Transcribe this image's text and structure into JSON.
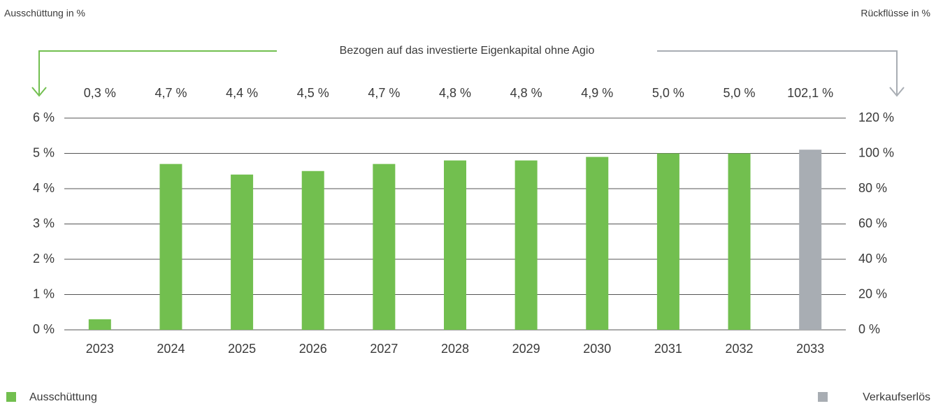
{
  "chart_data": {
    "type": "bar",
    "y_label": "Ausschüttung in %",
    "y2_label": "Rückflüsse in %",
    "annotation": "Bezogen auf das investierte Eigenkapital ohne Agio",
    "categories": [
      "2023",
      "2024",
      "2025",
      "2026",
      "2027",
      "2028",
      "2029",
      "2030",
      "2031",
      "2032",
      "2033"
    ],
    "series": [
      {
        "name": "Ausschüttung",
        "color": "#72bf4f",
        "values": [
          0.3,
          4.7,
          4.4,
          4.5,
          4.7,
          4.8,
          4.8,
          4.9,
          5.0,
          5.0,
          null
        ],
        "value_labels": [
          "0,3 %",
          "4,7 %",
          "4,4 %",
          "4,5 %",
          "4,7 %",
          "4,8 %",
          "4,8 %",
          "4,9 %",
          "5,0 %",
          "5,0 %",
          null
        ]
      },
      {
        "name": "Verkaufserlös",
        "color": "#a8adb3",
        "axis": "y2",
        "values": [
          null,
          null,
          null,
          null,
          null,
          null,
          null,
          null,
          null,
          null,
          102.1
        ],
        "value_labels": [
          null,
          null,
          null,
          null,
          null,
          null,
          null,
          null,
          null,
          null,
          "102,1 %"
        ]
      }
    ],
    "ylim": [
      0,
      6
    ],
    "yticks": [
      {
        "value": 0,
        "label": "0 %"
      },
      {
        "value": 1,
        "label": "1 %"
      },
      {
        "value": 2,
        "label": "2 %"
      },
      {
        "value": 3,
        "label": "3 %"
      },
      {
        "value": 4,
        "label": "4 %"
      },
      {
        "value": 5,
        "label": "5 %"
      },
      {
        "value": 6,
        "label": "6 %"
      }
    ],
    "y2lim": [
      0,
      120
    ],
    "y2ticks": [
      {
        "value": 0,
        "label": "0 %"
      },
      {
        "value": 20,
        "label": "20 %"
      },
      {
        "value": 40,
        "label": "40 %"
      },
      {
        "value": 60,
        "label": "60 %"
      },
      {
        "value": 80,
        "label": "80 %"
      },
      {
        "value": 100,
        "label": "100 %"
      },
      {
        "value": 120,
        "label": "120 %"
      }
    ],
    "grid": true
  }
}
